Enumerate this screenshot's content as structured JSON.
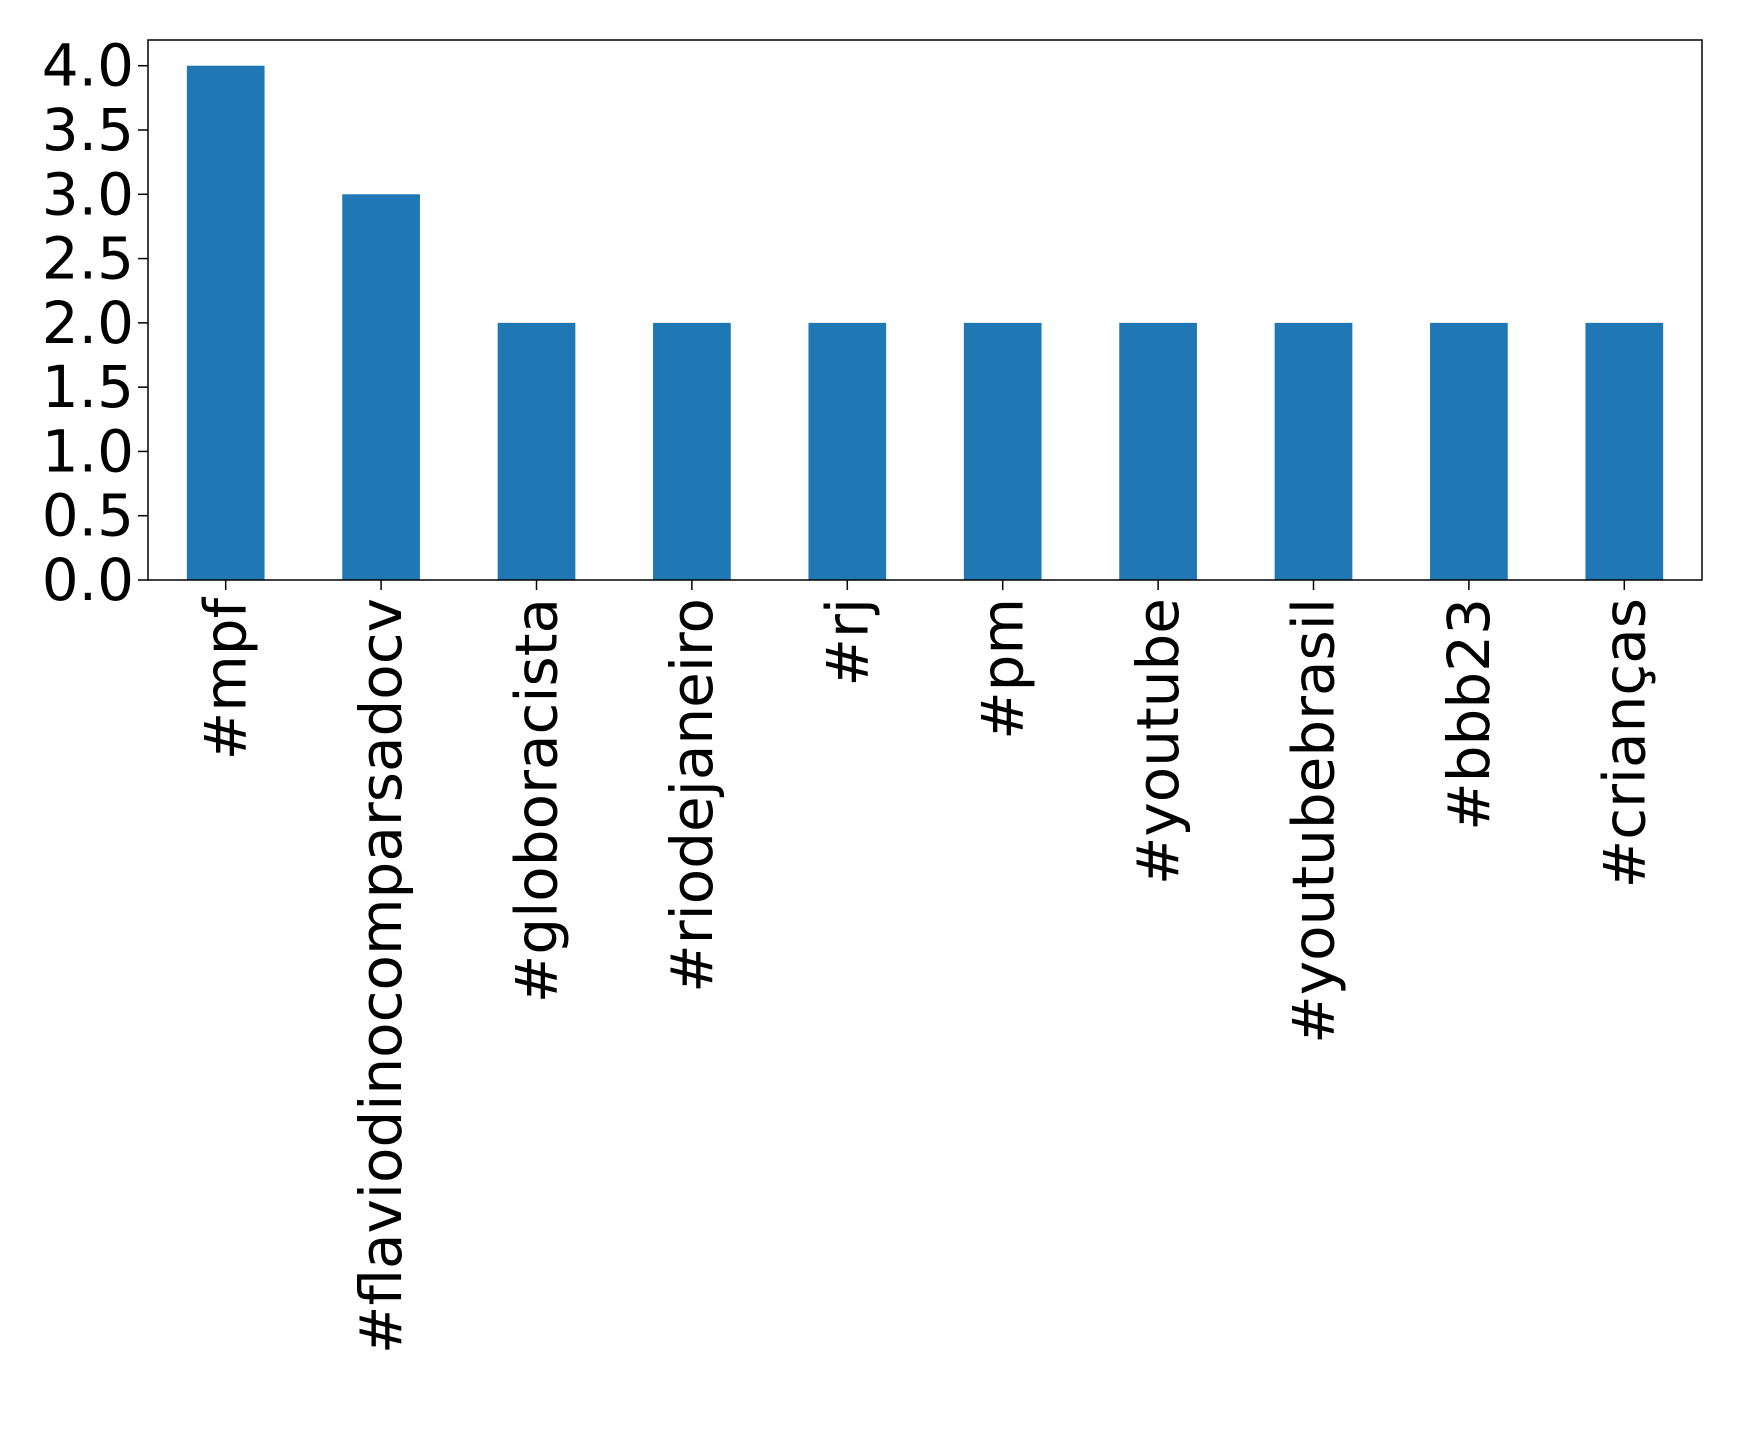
{
  "chart_data": {
    "type": "bar",
    "title": "",
    "xlabel": "",
    "ylabel": "",
    "categories": [
      "#mpf",
      "#flaviodinocomparsadocv",
      "#globoracista",
      "#riodejaneiro",
      "#rj",
      "#pm",
      "#youtube",
      "#youtubebrasil",
      "#bbb23",
      "#crianças"
    ],
    "values": [
      4,
      3,
      2,
      2,
      2,
      2,
      2,
      2,
      2,
      2
    ],
    "ylim": [
      0,
      4.2
    ],
    "yticks": [
      0.0,
      0.5,
      1.0,
      1.5,
      2.0,
      2.5,
      3.0,
      3.5,
      4.0
    ],
    "ytick_labels": [
      "0.0",
      "0.5",
      "1.0",
      "1.5",
      "2.0",
      "2.5",
      "3.0",
      "3.5",
      "4.0"
    ],
    "bar_color": "#1f77b4",
    "grid": false,
    "legend": "none"
  }
}
